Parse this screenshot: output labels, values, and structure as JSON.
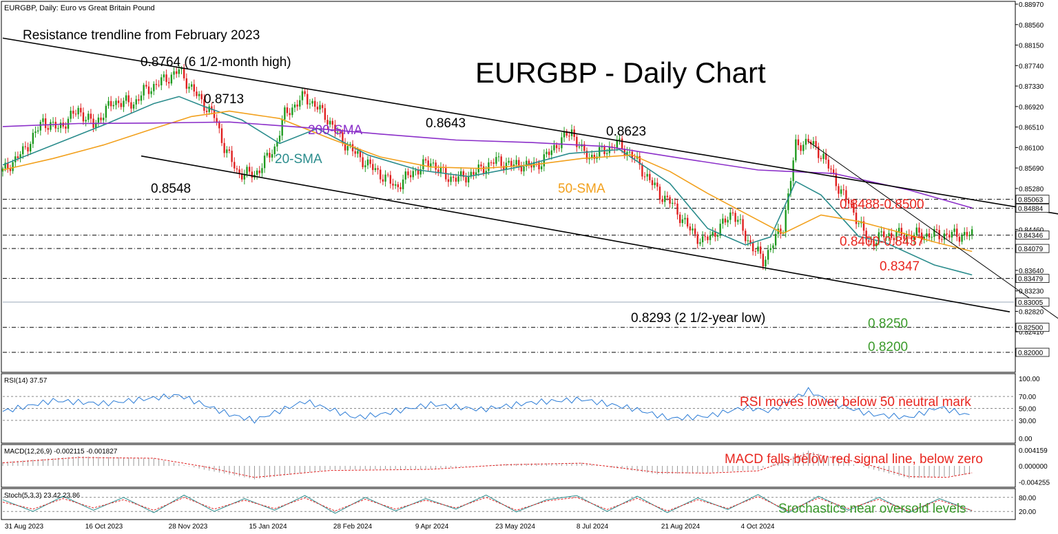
{
  "header": {
    "symbol_title": "EURGBP, Daily:  Euro vs Great Britain Pound"
  },
  "chart_data": [
    {
      "type": "line",
      "title": "EURGBP - Daily Chart",
      "x_tick_labels": [
        "31 Aug 2023",
        "16 Oct 2023",
        "28 Nov 2023",
        "15 Jan 2024",
        "28 Feb 2024",
        "9 Apr 2024",
        "23 May 2024",
        "8 Jul 2024",
        "21 Aug 2024",
        "4 Oct 2024"
      ],
      "y_tick_labels": [
        "0.88970",
        "0.88560",
        "0.88150",
        "0.87740",
        "0.87330",
        "0.86920",
        "0.86510",
        "0.86100",
        "0.85690",
        "0.85280",
        "0.84460",
        "0.84050",
        "0.83640",
        "0.83230",
        "0.82820",
        "0.82410",
        "0.82000"
      ],
      "ylim": [
        0.8196,
        0.89
      ],
      "price_tags": [
        "0.85063",
        "0.84884",
        "0.84346",
        "0.84079",
        "0.83479",
        "0.83005",
        "0.82500",
        "0.82000"
      ],
      "price_tag_values": [
        0.85063,
        0.84884,
        0.84346,
        0.84079,
        0.83479,
        0.83005,
        0.825,
        0.82
      ],
      "horizontal_levels": [
        0.85063,
        0.84884,
        0.84346,
        0.84079,
        0.83479,
        0.825,
        0.82
      ],
      "current_price_line": 0.83005,
      "price_series": {
        "name": "",
        "x": [
          0,
          8,
          16,
          22,
          30,
          36,
          44,
          52,
          56,
          61,
          66,
          70,
          76,
          84,
          88,
          93,
          100,
          108,
          112,
          120,
          128,
          134,
          140,
          146,
          151,
          156,
          163,
          170,
          176,
          182,
          190,
          196,
          202,
          206,
          209,
          214,
          220,
          226,
          230,
          233,
          238,
          244,
          250,
          256,
          261,
          266,
          272,
          278,
          285,
          290,
          295,
          300,
          302,
          305,
          310,
          315,
          320,
          326,
          332,
          338,
          344,
          350
        ],
        "values": [
          0.8562,
          0.8601,
          0.8662,
          0.8648,
          0.8685,
          0.8655,
          0.8702,
          0.8698,
          0.8722,
          0.8736,
          0.8751,
          0.8764,
          0.8721,
          0.8672,
          0.8612,
          0.8561,
          0.8555,
          0.8609,
          0.8676,
          0.8713,
          0.8675,
          0.8629,
          0.8598,
          0.8572,
          0.8553,
          0.8531,
          0.8561,
          0.8582,
          0.8551,
          0.8548,
          0.8566,
          0.8584,
          0.8574,
          0.8577,
          0.8571,
          0.8581,
          0.8616,
          0.8643,
          0.8602,
          0.8591,
          0.8601,
          0.8618,
          0.8594,
          0.8551,
          0.8517,
          0.8496,
          0.8451,
          0.8421,
          0.8449,
          0.8483,
          0.8431,
          0.8398,
          0.8381,
          0.8412,
          0.8451,
          0.8613,
          0.8623,
          0.8591,
          0.8531,
          0.8482,
          0.8418,
          0.8435
        ]
      },
      "line_series": [
        {
          "name": "20-SMA",
          "color": "#2a8c8c",
          "x": [
            0,
            20,
            40,
            60,
            70,
            80,
            95,
            110,
            125,
            145,
            165,
            185,
            205,
            225,
            245,
            265,
            280,
            295,
            305,
            315,
            325,
            340,
            350,
            370,
            385
          ],
          "values": [
            0.8575,
            0.8615,
            0.8655,
            0.8698,
            0.8712,
            0.8692,
            0.8665,
            0.8618,
            0.8648,
            0.8595,
            0.8565,
            0.8552,
            0.8571,
            0.8598,
            0.8606,
            0.8538,
            0.8448,
            0.8415,
            0.8431,
            0.8542,
            0.8515,
            0.8432,
            0.8421,
            0.8375,
            0.8355
          ]
        },
        {
          "name": "50-SMA",
          "color": "#f2a01c",
          "x": [
            0,
            20,
            40,
            60,
            75,
            90,
            110,
            130,
            150,
            170,
            190,
            210,
            230,
            250,
            265,
            280,
            295,
            310,
            325,
            340,
            355,
            370,
            385
          ],
          "values": [
            0.8565,
            0.8588,
            0.8615,
            0.8648,
            0.8672,
            0.8683,
            0.8668,
            0.8628,
            0.8591,
            0.8571,
            0.8568,
            0.8575,
            0.8588,
            0.8595,
            0.8562,
            0.8518,
            0.8478,
            0.8438,
            0.8475,
            0.8462,
            0.8442,
            0.8421,
            0.8402
          ]
        },
        {
          "name": "200-SMA",
          "color": "#8b2fc9",
          "x": [
            0,
            30,
            60,
            90,
            120,
            150,
            180,
            210,
            240,
            270,
            300,
            330,
            360,
            385
          ],
          "values": [
            0.8652,
            0.8658,
            0.8659,
            0.8661,
            0.865,
            0.8637,
            0.8625,
            0.862,
            0.8612,
            0.8588,
            0.8565,
            0.8558,
            0.8525,
            0.8489
          ]
        }
      ],
      "trend_lines": [
        {
          "name": "resistance",
          "x": [
            0,
            455
          ],
          "values": [
            0.8829,
            0.8447
          ]
        },
        {
          "name": "support",
          "x": [
            55,
            400
          ],
          "values": [
            0.8593,
            0.8281
          ]
        },
        {
          "name": "short-resistance",
          "x": [
            320,
            420
          ],
          "values": [
            0.8622,
            0.8265
          ]
        }
      ],
      "annotations": [
        "Resistance trendline from February 2023",
        "0.8764 (6 1/2-month high)",
        "0.8713",
        "0.8643",
        "0.8623",
        "0.8548",
        "200-SMA",
        "20-SMA",
        "50-SMA",
        "0.8488-0.8500",
        "0.8400-0.8437",
        "0.8347",
        "0.8293 (2 1/2-year low)",
        "0.8250",
        "0.8200"
      ]
    },
    {
      "type": "line",
      "title": "RSI(14) 37.57",
      "y_tick_labels": [
        "100.00",
        "70.00",
        "50.00",
        "30.00",
        "0.00"
      ],
      "ylim": [
        0,
        100
      ],
      "levels": [
        70,
        50,
        30
      ],
      "annotation": "RSI moves lower below 50 neutral mark",
      "series": [
        {
          "name": "",
          "x": [
            0,
            20,
            40,
            55,
            70,
            90,
            100,
            120,
            140,
            150,
            170,
            190,
            210,
            230,
            250,
            265,
            280,
            295,
            305,
            320,
            330,
            345,
            360,
            372,
            385
          ],
          "values": [
            45,
            63,
            58,
            65,
            72,
            40,
            30,
            62,
            35,
            40,
            57,
            48,
            60,
            65,
            50,
            33,
            37,
            52,
            45,
            80,
            58,
            40,
            35,
            52,
            37
          ]
        }
      ]
    },
    {
      "type": "line",
      "title": "MACD(12,26,9) -0.002115 -0.001827",
      "y_tick_labels": [
        "0.004159",
        "0.000000",
        "-0.004255"
      ],
      "ylim": [
        -0.0045,
        0.0045
      ],
      "annotation": "MACD falls below red signal line, below zero",
      "series": [
        {
          "name": "MACD(12,26,9)",
          "x": [
            0,
            30,
            60,
            80,
            100,
            130,
            170,
            200,
            230,
            260,
            280,
            300,
            320,
            340,
            360,
            375,
            385
          ],
          "values": [
            0.001,
            0.0025,
            0.002,
            -0.001,
            -0.0035,
            -0.001,
            -0.0008,
            0.0005,
            0.0008,
            -0.0022,
            -0.0018,
            -0.001,
            0.004,
            0.0,
            -0.0033,
            -0.0028,
            -0.002115
          ]
        },
        {
          "name": "",
          "x": [
            0,
            30,
            60,
            80,
            100,
            130,
            170,
            200,
            230,
            260,
            280,
            300,
            320,
            340,
            360,
            375,
            385
          ],
          "values": [
            0.0008,
            0.0022,
            0.002,
            -0.0002,
            -0.003,
            -0.0012,
            -0.0009,
            0.0003,
            0.0007,
            -0.0017,
            -0.0019,
            -0.0013,
            0.0033,
            0.001,
            -0.0028,
            -0.003,
            -0.001827
          ]
        }
      ]
    },
    {
      "type": "line",
      "title": "Stoch(5,3,3) 23.42 23.86",
      "y_tick_labels": [
        "80.00",
        "20.00"
      ],
      "ylim": [
        0,
        100
      ],
      "annotation": "Srochastics near oversold levels",
      "series": [
        {
          "name": "Stoch(5,3,3)",
          "x": [
            0,
            12,
            24,
            36,
            48,
            60,
            72,
            84,
            96,
            108,
            120,
            132,
            144,
            156,
            168,
            180,
            192,
            204,
            216,
            228,
            240,
            252,
            264,
            276,
            288,
            300,
            312,
            324,
            336,
            348,
            360,
            372,
            385
          ],
          "values": [
            70,
            20,
            85,
            25,
            80,
            15,
            90,
            20,
            75,
            25,
            88,
            12,
            80,
            22,
            75,
            30,
            90,
            18,
            70,
            88,
            20,
            85,
            15,
            78,
            28,
            92,
            15,
            85,
            25,
            80,
            15,
            75,
            23
          ]
        },
        {
          "name": "",
          "x": [
            0,
            12,
            24,
            36,
            48,
            60,
            72,
            84,
            96,
            108,
            120,
            132,
            144,
            156,
            168,
            180,
            192,
            204,
            216,
            228,
            240,
            252,
            264,
            276,
            288,
            300,
            312,
            324,
            336,
            348,
            360,
            372,
            385
          ],
          "values": [
            60,
            30,
            75,
            35,
            70,
            25,
            80,
            30,
            68,
            32,
            78,
            22,
            72,
            30,
            68,
            35,
            80,
            25,
            65,
            80,
            28,
            76,
            22,
            70,
            33,
            84,
            22,
            77,
            32,
            72,
            20,
            68,
            24
          ]
        }
      ]
    }
  ]
}
